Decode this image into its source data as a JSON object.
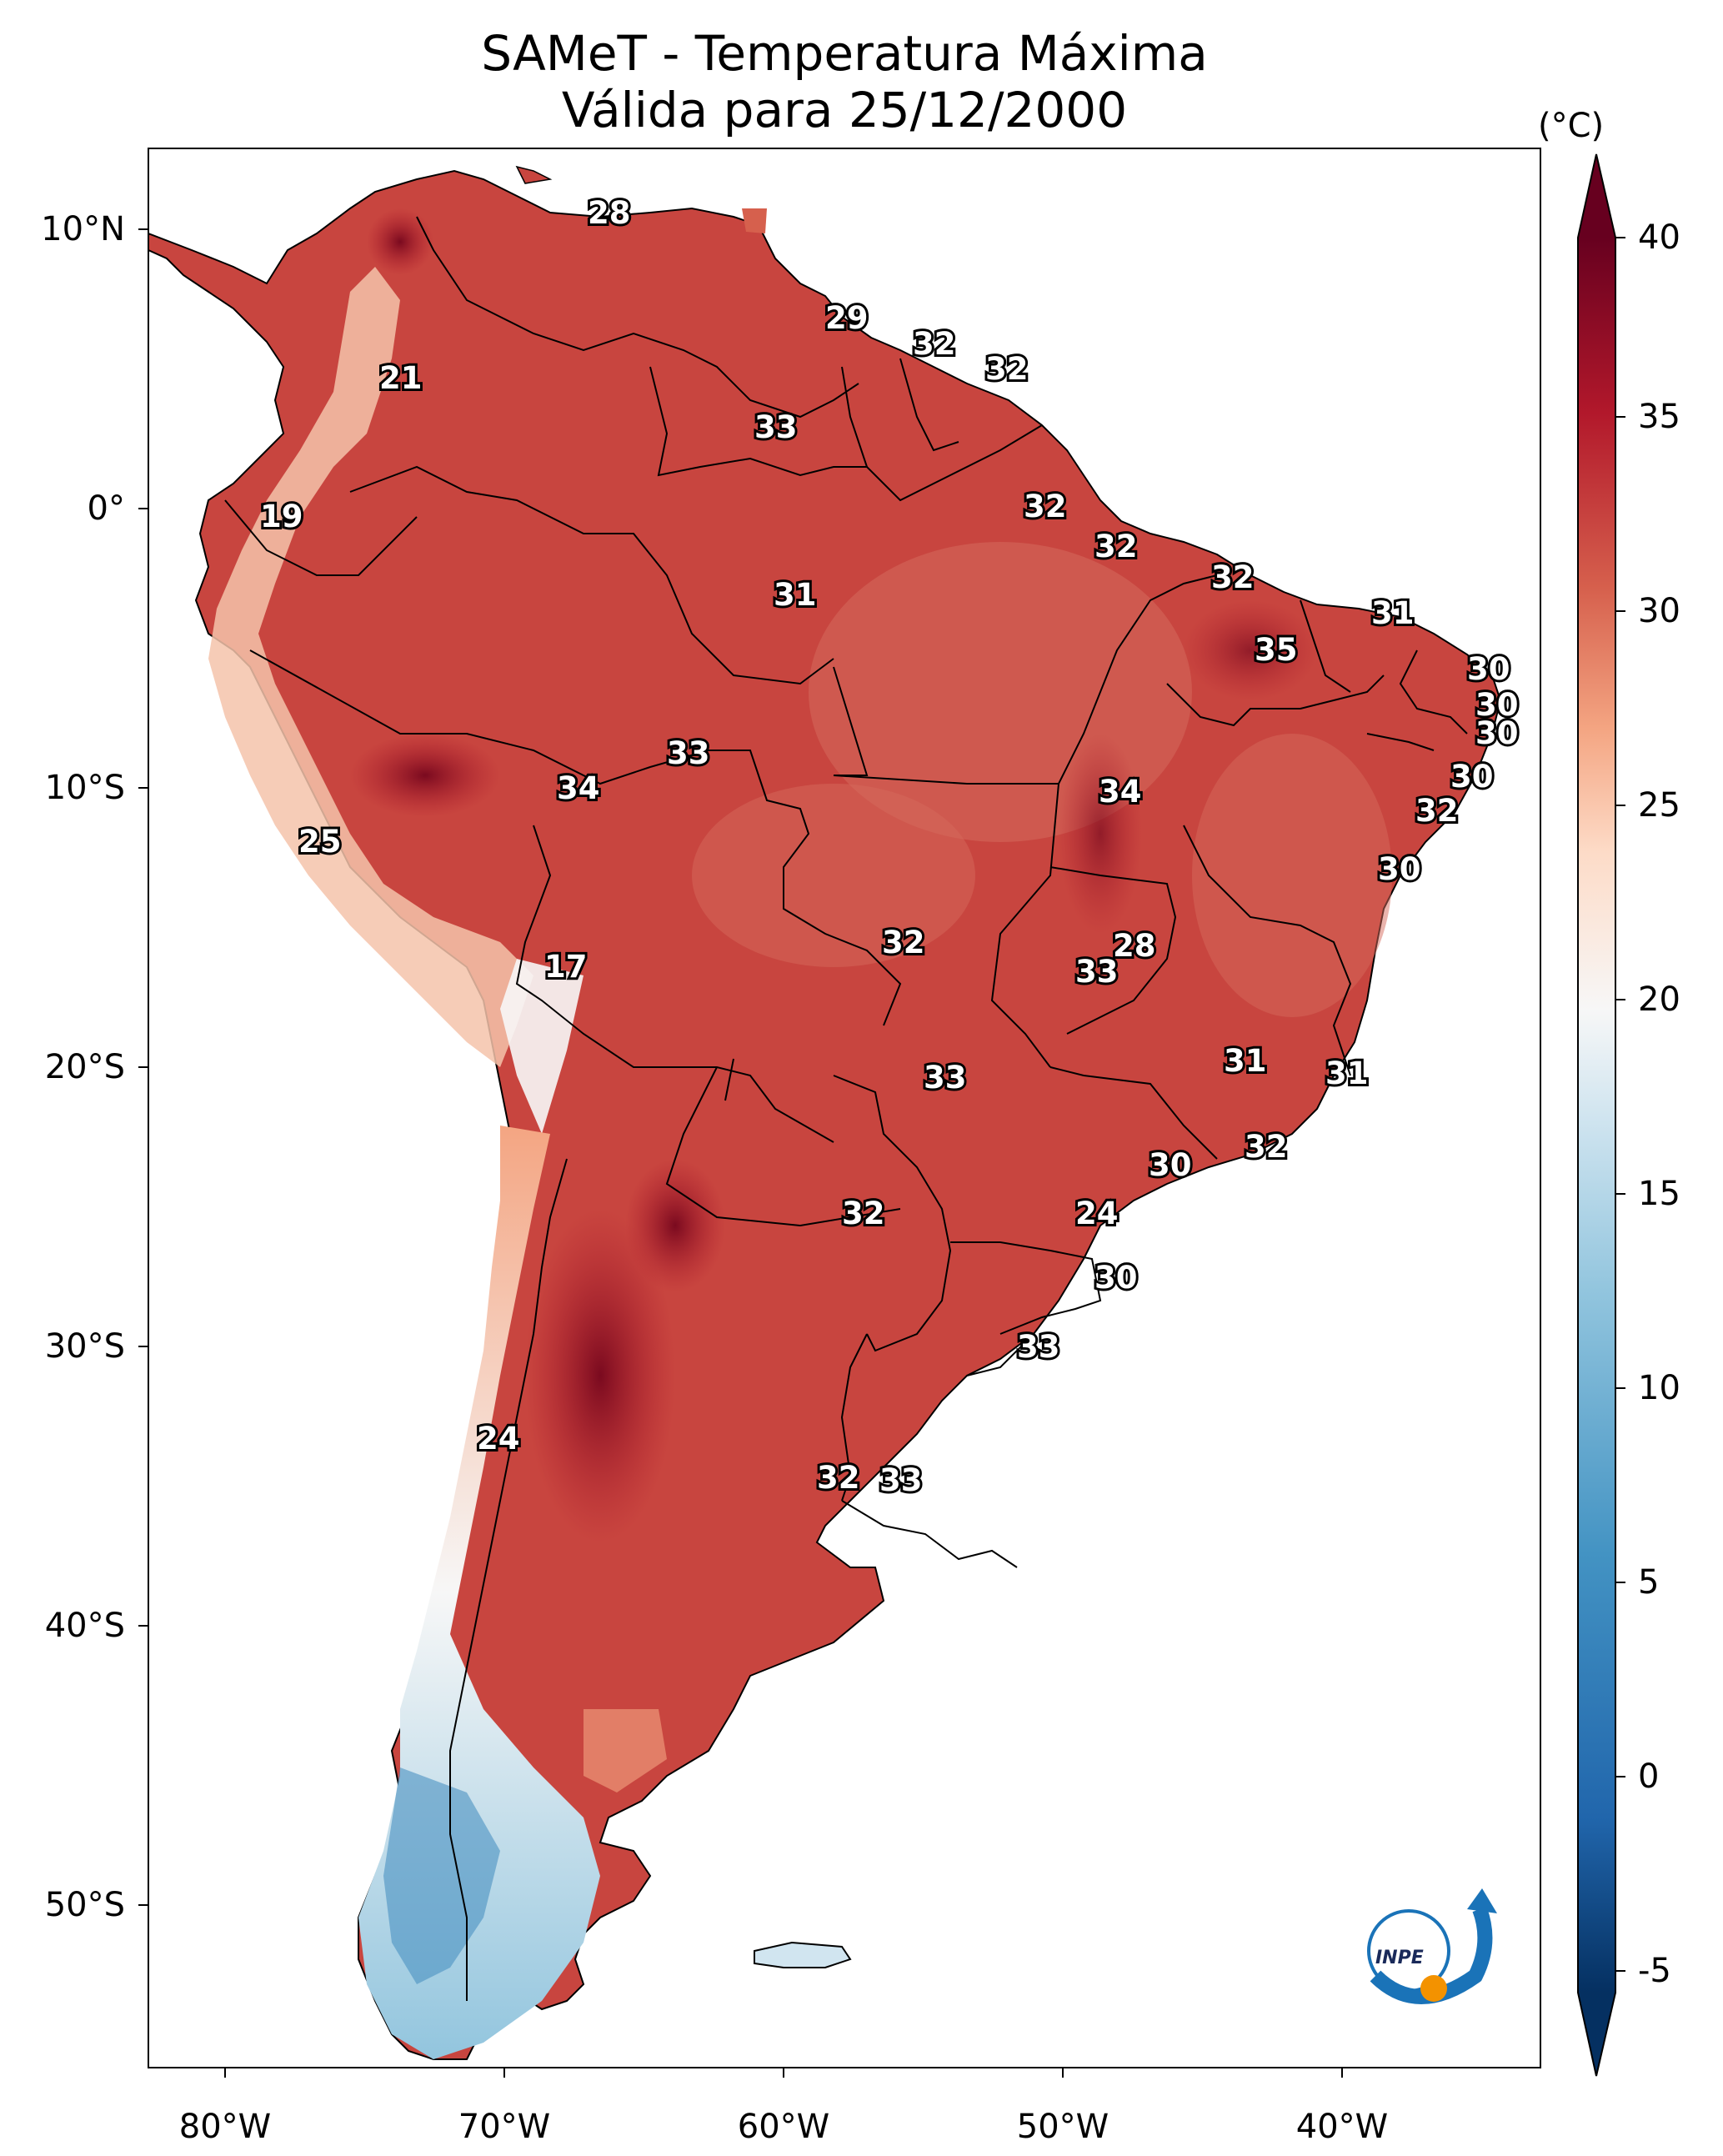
{
  "map": {
    "title_line1": "SAMeT - Temperatura Máxima",
    "title_line2": "Válida para 25/12/2000",
    "colorbar_unit": "(°C)",
    "colorbar_ticks": [
      "40",
      "35",
      "30",
      "25",
      "20",
      "15",
      "10",
      "5",
      "0",
      "-5"
    ],
    "lat_labels": [
      "10°N",
      "0°",
      "10°S",
      "20°S",
      "30°S",
      "40°S",
      "50°S"
    ],
    "lon_labels": [
      "80°W",
      "70°W",
      "60°W",
      "50°W",
      "40°W"
    ],
    "logo_text": "INPE",
    "colors": {
      "hot": "#67001f",
      "warm": "#c63c39",
      "mild": "#f4a582",
      "neutral": "#f7f7f7",
      "cool": "#92c5de",
      "cold": "#053061",
      "ocean": "#ffffff"
    },
    "station_values": [
      "28",
      "21",
      "29",
      "32",
      "32",
      "33",
      "19",
      "32",
      "32",
      "31",
      "32",
      "31",
      "35",
      "30",
      "30",
      "30",
      "33",
      "34",
      "34",
      "30",
      "32",
      "25",
      "30",
      "32",
      "28",
      "17",
      "33",
      "33",
      "31",
      "31",
      "32",
      "30",
      "32",
      "24",
      "30",
      "33",
      "24",
      "32",
      "33"
    ]
  }
}
